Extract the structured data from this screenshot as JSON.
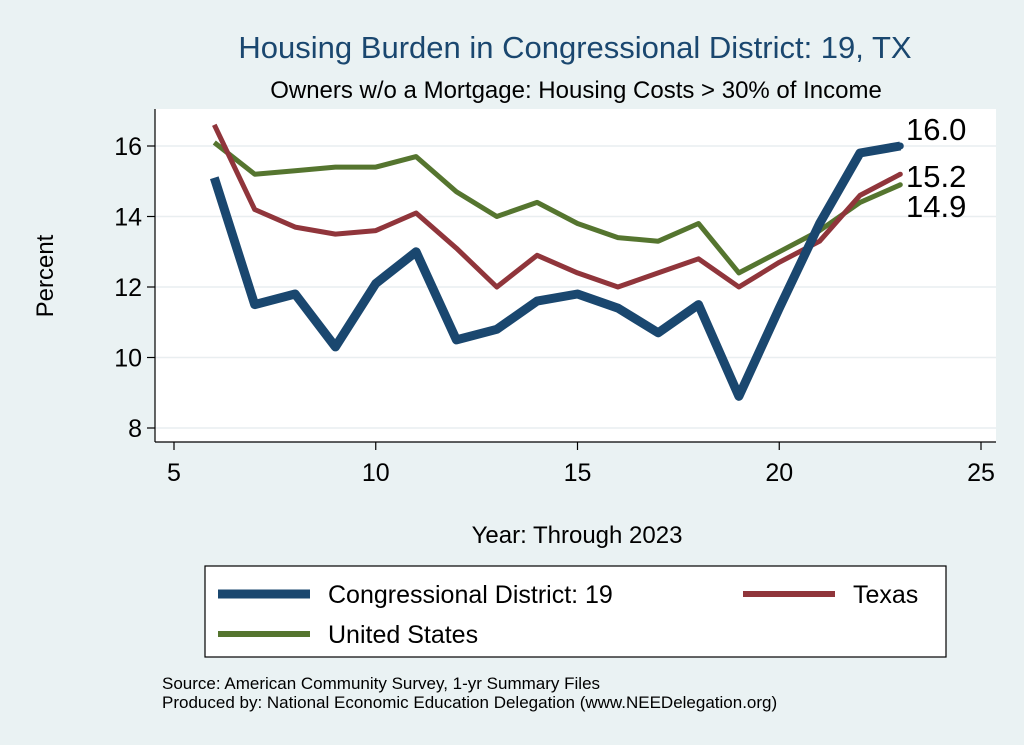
{
  "chart_data": {
    "type": "line",
    "title": "Housing Burden in Congressional District:  19, TX",
    "subtitle": "Owners w/o a Mortgage: Housing Costs > 30% of Income",
    "xlabel": "Year: Through 2023",
    "ylabel": "Percent",
    "xlim": [
      5,
      25
    ],
    "ylim": [
      8,
      17
    ],
    "xticks": [
      5,
      10,
      15,
      20,
      25
    ],
    "yticks": [
      8,
      10,
      12,
      14,
      16
    ],
    "grid": true,
    "x": [
      6,
      7,
      8,
      9,
      10,
      11,
      12,
      13,
      14,
      15,
      16,
      17,
      18,
      19,
      20,
      21,
      22,
      23
    ],
    "series": [
      {
        "name": "Congressional District:  19",
        "color": "#1a476f",
        "values": [
          15.1,
          11.5,
          11.8,
          10.3,
          12.1,
          13.0,
          10.5,
          10.8,
          11.6,
          11.8,
          11.4,
          10.7,
          11.5,
          8.9,
          11.4,
          13.8,
          15.8,
          16.0
        ],
        "end_label": "16.0"
      },
      {
        "name": "Texas",
        "color": "#90353b",
        "values": [
          16.6,
          14.2,
          13.7,
          13.5,
          13.6,
          14.1,
          13.1,
          12.0,
          12.9,
          12.4,
          12.0,
          12.4,
          12.8,
          12.0,
          12.7,
          13.3,
          14.6,
          15.2
        ],
        "end_label": "15.2"
      },
      {
        "name": "United States",
        "color": "#55752f",
        "values": [
          16.1,
          15.2,
          15.3,
          15.4,
          15.4,
          15.7,
          14.7,
          14.0,
          14.4,
          13.8,
          13.4,
          13.3,
          13.8,
          12.4,
          13.0,
          13.6,
          14.4,
          14.9
        ],
        "end_label": "14.9"
      }
    ],
    "legend": {
      "position": "bottom",
      "items": [
        "Congressional District:  19",
        "Texas",
        "United States"
      ]
    },
    "notes": [
      "Source: American Community Survey, 1-yr Summary Files",
      "Produced by: National Economic Education Delegation (www.NEEDelegation.org)"
    ]
  }
}
